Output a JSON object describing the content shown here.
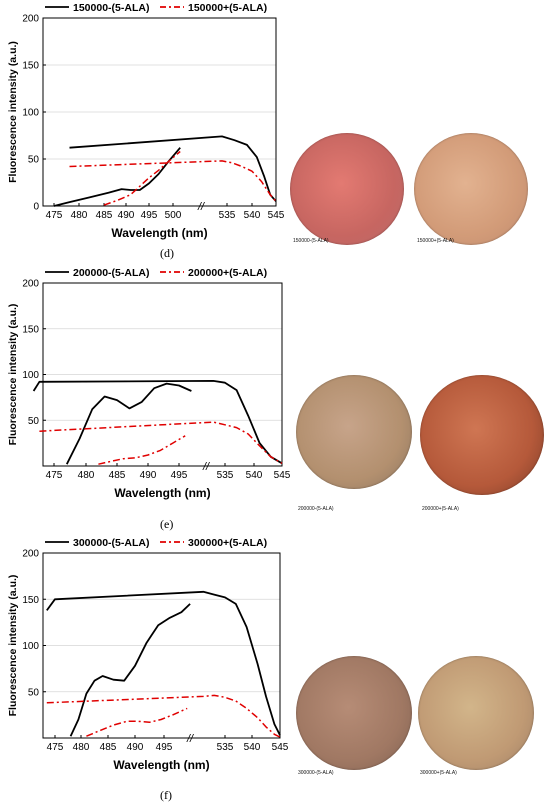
{
  "chart_data": [
    {
      "type": "line",
      "panel": "(d)",
      "xlabel": "Wavelength (nm)",
      "ylabel": "Fluorescence intensity (a.u.)",
      "ylim": [
        0,
        200
      ],
      "y_ticks": [
        "0",
        "50",
        "100",
        "150",
        "200"
      ],
      "x_ticks": [
        "475",
        "480",
        "485",
        "490",
        "495",
        "500",
        "535",
        "540",
        "545"
      ],
      "axis_break": "//",
      "grid": true,
      "legend": "top",
      "series": [
        {
          "name": "150000-(5-ALA)",
          "color": "#000000",
          "style": "solid",
          "x": [
            475,
            478,
            482,
            486,
            489,
            491,
            493,
            495,
            497,
            499,
            501.5,
            "|",
            503.5,
            534,
            536.5,
            539,
            541,
            542.5,
            543.8,
            545
          ],
          "y": [
            0,
            4,
            9,
            14,
            18,
            17,
            17,
            24,
            34,
            47,
            62,
            null,
            62,
            74,
            70,
            65,
            52,
            32,
            12,
            5
          ]
        },
        {
          "name": "150000+(5-ALA)",
          "color": "#e00000",
          "style": "dashdot",
          "x": [
            485,
            488,
            491,
            493,
            495,
            497,
            499,
            501.5,
            "|",
            503.5,
            534,
            536,
            538,
            540,
            542,
            543.8,
            545
          ],
          "y": [
            1,
            6,
            12,
            21,
            30,
            38,
            47,
            58,
            null,
            42,
            48,
            46,
            42,
            37,
            26,
            12,
            5
          ]
        }
      ],
      "photos": [
        {
          "label": "150000-(5-ALA)",
          "tint": "#d9706c"
        },
        {
          "label": "150000+(5-ALA)",
          "tint": "#d8a683"
        }
      ]
    },
    {
      "type": "line",
      "panel": "(e)",
      "xlabel": "Wavelength (nm)",
      "ylabel": "Fluorescence intensity (a.u.)",
      "ylim": [
        0,
        200
      ],
      "y_ticks": [
        "50",
        "100",
        "150",
        "200"
      ],
      "x_ticks": [
        "475",
        "480",
        "485",
        "490",
        "495",
        "535",
        "540",
        "545"
      ],
      "axis_break": "//",
      "grid": true,
      "legend": "top",
      "series": [
        {
          "name": "200000-(5-ALA)",
          "color": "#000000",
          "style": "solid",
          "x": [
            477,
            479,
            481,
            483,
            485,
            487,
            489,
            491,
            493,
            495,
            497,
            "|",
            502,
            503,
            533,
            535,
            537,
            539,
            541,
            543,
            545
          ],
          "y": [
            2,
            30,
            62,
            76,
            72,
            63,
            70,
            85,
            90,
            88,
            82,
            null,
            82,
            92,
            93,
            91,
            83,
            55,
            25,
            10,
            3
          ]
        },
        {
          "name": "200000+(5-ALA)",
          "color": "#e00000",
          "style": "dashdot",
          "x": [
            482,
            484,
            486,
            488,
            490,
            492,
            494,
            496,
            "|",
            503,
            533,
            535,
            537,
            539,
            541,
            543,
            545
          ],
          "y": [
            2,
            5,
            8,
            9,
            12,
            17,
            25,
            33,
            null,
            38,
            48,
            45,
            42,
            35,
            22,
            10,
            3
          ]
        }
      ],
      "photos": [
        {
          "label": "200000-(5-ALA)",
          "tint": "#b89479"
        },
        {
          "label": "200000+(5-ALA)",
          "tint": "#b85f3f"
        }
      ]
    },
    {
      "type": "line",
      "panel": "(f)",
      "xlabel": "Wavelength (nm)",
      "ylabel": "Fluorescence intensity (a.u.)",
      "ylim": [
        0,
        200
      ],
      "y_ticks": [
        "50",
        "100",
        "150",
        "200"
      ],
      "x_ticks": [
        "475",
        "480",
        "485",
        "490",
        "495",
        "535",
        "540",
        "545"
      ],
      "axis_break": "//",
      "grid": true,
      "legend": "top",
      "series": [
        {
          "name": "300000-(5-ALA)",
          "color": "#000000",
          "style": "solid",
          "x": [
            478,
            479.5,
            481,
            482.5,
            484,
            486,
            488,
            490,
            492,
            494,
            496,
            498,
            499.5,
            "|",
            502,
            503.5,
            531,
            533,
            535,
            537,
            539,
            541,
            542.5,
            544,
            545
          ],
          "y": [
            2,
            20,
            48,
            62,
            67,
            63,
            62,
            78,
            103,
            122,
            130,
            136,
            145,
            null,
            138,
            150,
            158,
            155,
            152,
            145,
            120,
            80,
            45,
            15,
            3
          ]
        },
        {
          "name": "300000+(5-ALA)",
          "color": "#e00000",
          "style": "dashdot",
          "x": [
            481,
            483.5,
            486,
            488.5,
            490.5,
            492.5,
            494.5,
            496.5,
            499,
            "|",
            502,
            531,
            533,
            535,
            537,
            539,
            541,
            542.5,
            544,
            545
          ],
          "y": [
            2,
            8,
            14,
            18,
            18,
            17,
            20,
            25,
            32,
            null,
            38,
            45,
            46,
            44,
            40,
            32,
            22,
            12,
            4,
            1
          ]
        }
      ],
      "photos": [
        {
          "label": "300000-(5-ALA)",
          "tint": "#a8806c"
        },
        {
          "label": "300000+(5-ALA)",
          "tint": "#c4a27e"
        }
      ]
    }
  ]
}
